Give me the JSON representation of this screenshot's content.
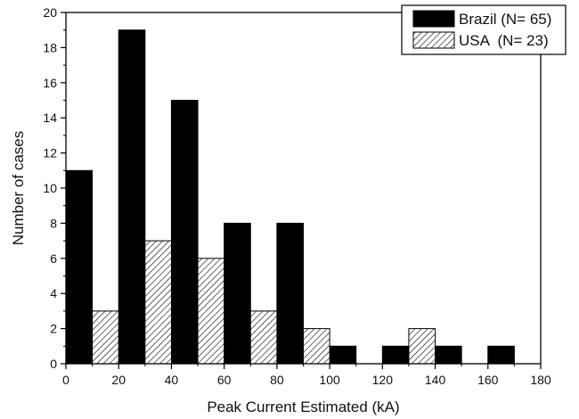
{
  "chart_data": {
    "type": "bar",
    "categories": [
      "0-20",
      "20-40",
      "40-60",
      "60-80",
      "80-100",
      "100-120",
      "120-140",
      "140-160",
      "160-180"
    ],
    "bin_edges": [
      0,
      20,
      40,
      60,
      80,
      100,
      120,
      140,
      160,
      180
    ],
    "series": [
      {
        "name": "Brazil (N= 65)",
        "color": "#000000",
        "fill_style": "solid",
        "values": [
          11,
          19,
          15,
          8,
          8,
          1,
          1,
          1,
          1
        ]
      },
      {
        "name": "USA  (N= 23)",
        "color": "#000000",
        "fill_style": "diagonal-hatch",
        "values": [
          3,
          7,
          6,
          3,
          2,
          0,
          2,
          0,
          0
        ]
      }
    ],
    "title": "",
    "xlabel": "Peak Current Estimated (kA)",
    "ylabel": "Number of cases",
    "xlim": [
      0,
      180
    ],
    "ylim": [
      0,
      20
    ],
    "xticks": [
      "0",
      "20",
      "40",
      "60",
      "80",
      "100",
      "120",
      "140",
      "160",
      "180"
    ],
    "yticks": [
      "0",
      "2",
      "4",
      "6",
      "8",
      "10",
      "12",
      "14",
      "16",
      "18",
      "20"
    ],
    "grid": false,
    "legend_position": "top-right"
  }
}
